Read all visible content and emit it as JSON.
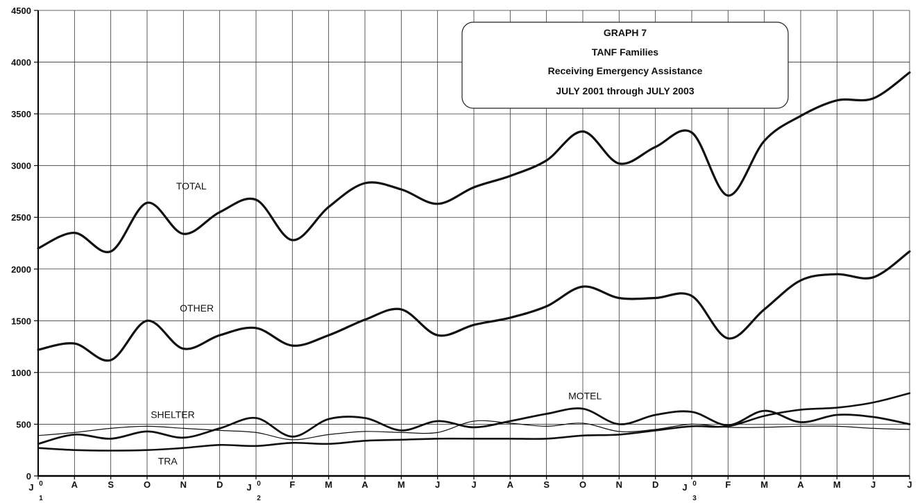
{
  "chart_data": {
    "type": "line",
    "title_lines": [
      "GRAPH 7",
      "TANF Families",
      "Receiving Emergency Assistance",
      "JULY 2001 through JULY 2003"
    ],
    "categories": [
      "J",
      "A",
      "S",
      "O",
      "N",
      "D",
      "J",
      "F",
      "M",
      "A",
      "M",
      "J",
      "J",
      "A",
      "S",
      "O",
      "N",
      "D",
      "J",
      "F",
      "M",
      "A",
      "M",
      "J",
      "J"
    ],
    "category_sublabels": [
      {
        "index": 0,
        "top": "0",
        "bottom": "1"
      },
      {
        "index": 6,
        "top": "0",
        "bottom": "2"
      },
      {
        "index": 18,
        "top": "0",
        "bottom": "3"
      }
    ],
    "ylim": [
      0,
      4500
    ],
    "yticks": [
      0,
      500,
      1000,
      1500,
      2000,
      2500,
      3000,
      3500,
      4000,
      4500
    ],
    "grid": true,
    "series": [
      {
        "name": "TOTAL",
        "width": 3.2,
        "values": [
          2200,
          2350,
          2170,
          2640,
          2340,
          2550,
          2670,
          2280,
          2600,
          2830,
          2770,
          2630,
          2790,
          2900,
          3050,
          3330,
          3020,
          3180,
          3320,
          2710,
          3240,
          3480,
          3630,
          3650,
          3900
        ]
      },
      {
        "name": "OTHER",
        "width": 3.2,
        "values": [
          1220,
          1280,
          1120,
          1500,
          1230,
          1360,
          1430,
          1260,
          1360,
          1510,
          1610,
          1360,
          1460,
          1530,
          1640,
          1830,
          1720,
          1720,
          1740,
          1330,
          1610,
          1890,
          1950,
          1920,
          2170
        ]
      },
      {
        "name": "MOTEL",
        "width": 2.8,
        "values": [
          310,
          400,
          360,
          430,
          370,
          460,
          560,
          380,
          550,
          560,
          440,
          530,
          470,
          530,
          600,
          650,
          500,
          590,
          620,
          490,
          630,
          520,
          590,
          570,
          500
        ]
      },
      {
        "name": "SHELTER",
        "width": 1.2,
        "values": [
          390,
          420,
          460,
          480,
          460,
          440,
          420,
          350,
          400,
          430,
          420,
          420,
          530,
          510,
          480,
          510,
          430,
          450,
          500,
          470,
          470,
          480,
          480,
          460,
          450
        ]
      },
      {
        "name": "TRA",
        "width": 2.6,
        "values": [
          270,
          250,
          245,
          250,
          270,
          300,
          290,
          320,
          310,
          340,
          350,
          360,
          360,
          360,
          360,
          390,
          400,
          440,
          480,
          480,
          580,
          640,
          660,
          710,
          800
        ]
      }
    ]
  }
}
